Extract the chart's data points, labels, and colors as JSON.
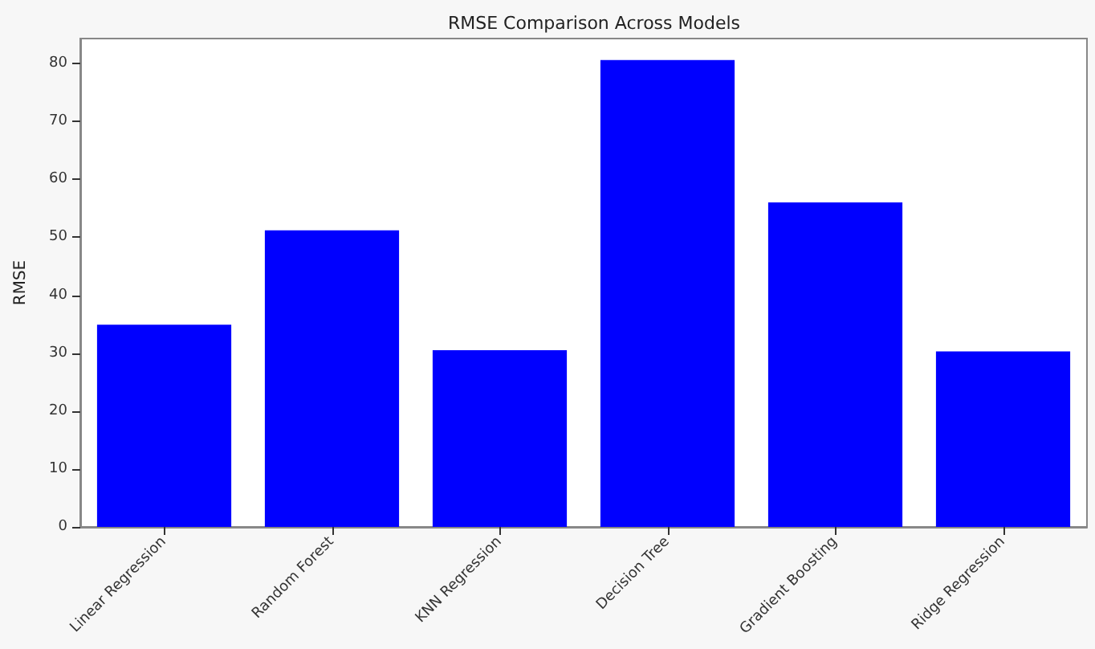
{
  "chart_data": {
    "type": "bar",
    "title": "RMSE Comparison Across Models",
    "ylabel": "RMSE",
    "categories": [
      "Linear Regression",
      "Random Forest",
      "KNN Regression",
      "Decision Tree",
      "Gradient Boosting",
      "Ridge Regression"
    ],
    "values": [
      34.9,
      51.2,
      30.5,
      80.6,
      56.0,
      30.3
    ],
    "color": "#0000ff",
    "ylim": [
      0,
      84.3
    ],
    "yticks": [
      0,
      10,
      20,
      30,
      40,
      50,
      60,
      70,
      80
    ],
    "grid": false
  }
}
